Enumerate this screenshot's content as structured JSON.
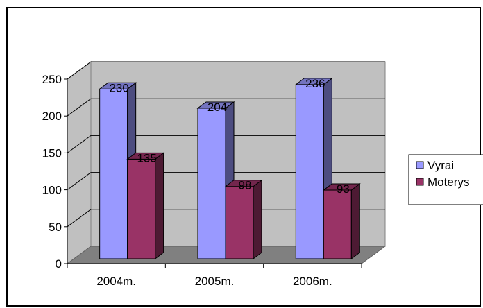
{
  "chart_data": {
    "type": "bar",
    "categories": [
      "2004m.",
      "2005m.",
      "2006m."
    ],
    "series": [
      {
        "name": "Vyrai",
        "values": [
          230,
          204,
          236
        ],
        "color": "#9999ff"
      },
      {
        "name": "Moterys",
        "values": [
          135,
          98,
          93
        ],
        "color": "#993366"
      }
    ],
    "y_ticks": [
      "0",
      "50",
      "100",
      "150",
      "200",
      "250"
    ],
    "ylim": [
      0,
      250
    ],
    "grid": true,
    "legend": "right",
    "style": "3d-clustered"
  }
}
